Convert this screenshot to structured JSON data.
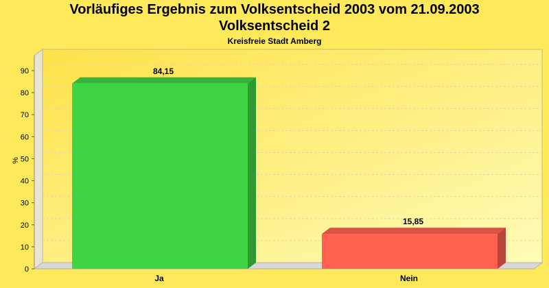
{
  "chart_data": {
    "type": "bar",
    "title": "Vorläufiges Ergebnis zum Volksentscheid 2003 vom 21.09.2003",
    "title2": "Volksentscheid 2",
    "subtitle": "Kreisfreie Stadt Amberg",
    "xlabel": "",
    "ylabel": "%",
    "ylim": [
      0,
      90
    ],
    "yticks": [
      0,
      10,
      20,
      30,
      40,
      50,
      60,
      70,
      80,
      90
    ],
    "categories": [
      "Ja",
      "Nein"
    ],
    "values": [
      84.15,
      15.85
    ],
    "value_labels": [
      "84,15",
      "15,85"
    ],
    "colors": [
      "#3fd444",
      "#ff6050"
    ],
    "grid": true,
    "legend": "none"
  }
}
